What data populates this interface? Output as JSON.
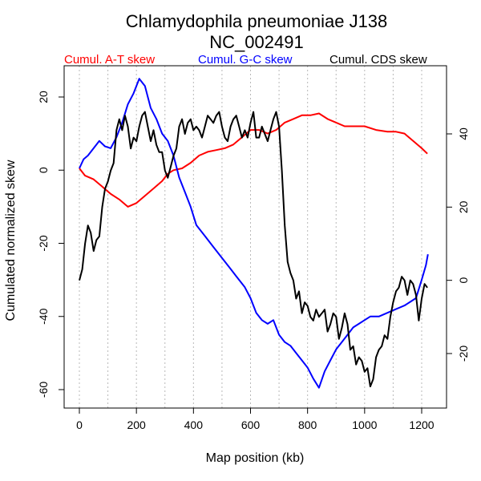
{
  "chart_data": {
    "type": "line",
    "title": "Chlamydophila pneumoniae J138",
    "subtitle": "NC_002491",
    "xlabel": "Map position (kb)",
    "ylabel": "Cumulated normalized skew",
    "xlim": [
      0,
      1230
    ],
    "x_ticks": [
      0,
      200,
      400,
      600,
      800,
      1000,
      1200
    ],
    "ylim_left": [
      -62,
      28
    ],
    "y_ticks_left": [
      20,
      0,
      -20,
      -40,
      -60
    ],
    "ylim_right": [
      -32,
      50
    ],
    "y_ticks_right": [
      40,
      20,
      0,
      -20
    ],
    "vertical_gridlines_at": [
      0,
      100,
      200,
      300,
      400,
      500,
      600,
      700,
      800,
      900,
      1000,
      1100,
      1200
    ],
    "legend_placement": "top",
    "series": [
      {
        "name": "Cumul. A-T skew",
        "color": "#ff0000",
        "axis": "left",
        "points": [
          [
            0,
            0.5
          ],
          [
            20,
            -1.5
          ],
          [
            50,
            -2.5
          ],
          [
            80,
            -4.5
          ],
          [
            110,
            -6.5
          ],
          [
            140,
            -8
          ],
          [
            170,
            -10
          ],
          [
            200,
            -9
          ],
          [
            230,
            -7
          ],
          [
            260,
            -5
          ],
          [
            290,
            -3
          ],
          [
            310,
            -1
          ],
          [
            330,
            0
          ],
          [
            360,
            0.5
          ],
          [
            390,
            2
          ],
          [
            420,
            4
          ],
          [
            450,
            5
          ],
          [
            480,
            5.5
          ],
          [
            510,
            6
          ],
          [
            540,
            7
          ],
          [
            570,
            9
          ],
          [
            600,
            11
          ],
          [
            630,
            11
          ],
          [
            660,
            10
          ],
          [
            690,
            11
          ],
          [
            720,
            13
          ],
          [
            750,
            14
          ],
          [
            780,
            15
          ],
          [
            810,
            15
          ],
          [
            840,
            15.5
          ],
          [
            870,
            14
          ],
          [
            900,
            13
          ],
          [
            930,
            12
          ],
          [
            960,
            12
          ],
          [
            1000,
            12
          ],
          [
            1040,
            11
          ],
          [
            1080,
            10.5
          ],
          [
            1110,
            10.5
          ],
          [
            1140,
            10
          ],
          [
            1170,
            8
          ],
          [
            1200,
            6
          ],
          [
            1220,
            4.5
          ]
        ]
      },
      {
        "name": "Cumul. G-C skew",
        "color": "#0000ff",
        "axis": "left",
        "points": [
          [
            0,
            0.5
          ],
          [
            15,
            3
          ],
          [
            30,
            4
          ],
          [
            50,
            6
          ],
          [
            70,
            8
          ],
          [
            90,
            6.5
          ],
          [
            110,
            6
          ],
          [
            130,
            9
          ],
          [
            150,
            13
          ],
          [
            170,
            18
          ],
          [
            190,
            21
          ],
          [
            210,
            25
          ],
          [
            230,
            23
          ],
          [
            250,
            17
          ],
          [
            270,
            14
          ],
          [
            290,
            10
          ],
          [
            310,
            8
          ],
          [
            330,
            4
          ],
          [
            350,
            -2
          ],
          [
            370,
            -6
          ],
          [
            390,
            -10
          ],
          [
            410,
            -15
          ],
          [
            440,
            -18
          ],
          [
            470,
            -21
          ],
          [
            500,
            -24
          ],
          [
            530,
            -27
          ],
          [
            550,
            -29
          ],
          [
            580,
            -32
          ],
          [
            600,
            -35
          ],
          [
            620,
            -39
          ],
          [
            640,
            -41
          ],
          [
            660,
            -42
          ],
          [
            680,
            -41
          ],
          [
            700,
            -45
          ],
          [
            720,
            -47
          ],
          [
            740,
            -48
          ],
          [
            760,
            -50
          ],
          [
            780,
            -52
          ],
          [
            800,
            -54
          ],
          [
            820,
            -57
          ],
          [
            840,
            -59.5
          ],
          [
            860,
            -55
          ],
          [
            880,
            -52
          ],
          [
            900,
            -49
          ],
          [
            920,
            -47
          ],
          [
            940,
            -45
          ],
          [
            960,
            -43
          ],
          [
            980,
            -42
          ],
          [
            1000,
            -41
          ],
          [
            1020,
            -40
          ],
          [
            1050,
            -40
          ],
          [
            1080,
            -39
          ],
          [
            1110,
            -38
          ],
          [
            1140,
            -37
          ],
          [
            1160,
            -36
          ],
          [
            1180,
            -35
          ],
          [
            1200,
            -30
          ],
          [
            1215,
            -26
          ],
          [
            1222,
            -23
          ]
        ]
      },
      {
        "name": "Cumul. CDS skew",
        "color": "#000000",
        "axis": "right",
        "points": [
          [
            0,
            0
          ],
          [
            10,
            3
          ],
          [
            20,
            10
          ],
          [
            30,
            15
          ],
          [
            40,
            13
          ],
          [
            50,
            8
          ],
          [
            60,
            11
          ],
          [
            70,
            12
          ],
          [
            80,
            20
          ],
          [
            90,
            25
          ],
          [
            100,
            27
          ],
          [
            110,
            30
          ],
          [
            120,
            32
          ],
          [
            130,
            41
          ],
          [
            140,
            44
          ],
          [
            150,
            41
          ],
          [
            160,
            45
          ],
          [
            170,
            42
          ],
          [
            180,
            36
          ],
          [
            190,
            39
          ],
          [
            200,
            38
          ],
          [
            210,
            42
          ],
          [
            220,
            45
          ],
          [
            230,
            46
          ],
          [
            240,
            42
          ],
          [
            250,
            38
          ],
          [
            260,
            41
          ],
          [
            270,
            37
          ],
          [
            280,
            35
          ],
          [
            290,
            35
          ],
          [
            300,
            30
          ],
          [
            310,
            28
          ],
          [
            320,
            31
          ],
          [
            330,
            34
          ],
          [
            340,
            36
          ],
          [
            350,
            42
          ],
          [
            360,
            44
          ],
          [
            370,
            40
          ],
          [
            380,
            43
          ],
          [
            390,
            44
          ],
          [
            400,
            41
          ],
          [
            410,
            42
          ],
          [
            420,
            41
          ],
          [
            430,
            39
          ],
          [
            440,
            42
          ],
          [
            450,
            45
          ],
          [
            460,
            44
          ],
          [
            470,
            43
          ],
          [
            480,
            45
          ],
          [
            490,
            46
          ],
          [
            500,
            42
          ],
          [
            510,
            39
          ],
          [
            520,
            38
          ],
          [
            530,
            42
          ],
          [
            540,
            44
          ],
          [
            550,
            45
          ],
          [
            560,
            42
          ],
          [
            570,
            39
          ],
          [
            580,
            41
          ],
          [
            590,
            39
          ],
          [
            600,
            43
          ],
          [
            610,
            46
          ],
          [
            620,
            39
          ],
          [
            630,
            39
          ],
          [
            640,
            42
          ],
          [
            650,
            40
          ],
          [
            660,
            38
          ],
          [
            670,
            41
          ],
          [
            680,
            44
          ],
          [
            690,
            46
          ],
          [
            700,
            42
          ],
          [
            710,
            30
          ],
          [
            720,
            15
          ],
          [
            730,
            5
          ],
          [
            740,
            2
          ],
          [
            750,
            0
          ],
          [
            760,
            -5
          ],
          [
            770,
            -3
          ],
          [
            780,
            -9
          ],
          [
            790,
            -6
          ],
          [
            800,
            -7
          ],
          [
            810,
            -10
          ],
          [
            820,
            -11
          ],
          [
            830,
            -8
          ],
          [
            840,
            -10
          ],
          [
            850,
            -9
          ],
          [
            860,
            -8
          ],
          [
            870,
            -14
          ],
          [
            880,
            -12
          ],
          [
            890,
            -9
          ],
          [
            900,
            -10
          ],
          [
            910,
            -16
          ],
          [
            920,
            -13
          ],
          [
            930,
            -9
          ],
          [
            940,
            -12
          ],
          [
            950,
            -19
          ],
          [
            960,
            -18
          ],
          [
            970,
            -23
          ],
          [
            980,
            -21
          ],
          [
            990,
            -22
          ],
          [
            1000,
            -25
          ],
          [
            1010,
            -24
          ],
          [
            1020,
            -29
          ],
          [
            1030,
            -27
          ],
          [
            1040,
            -21
          ],
          [
            1050,
            -19
          ],
          [
            1060,
            -18
          ],
          [
            1070,
            -15
          ],
          [
            1080,
            -16
          ],
          [
            1090,
            -10
          ],
          [
            1100,
            -6
          ],
          [
            1110,
            -3
          ],
          [
            1120,
            -2
          ],
          [
            1130,
            1
          ],
          [
            1140,
            0
          ],
          [
            1150,
            -4
          ],
          [
            1160,
            0
          ],
          [
            1170,
            -1
          ],
          [
            1180,
            -4
          ],
          [
            1190,
            -11
          ],
          [
            1200,
            -5
          ],
          [
            1210,
            -1
          ],
          [
            1220,
            -2
          ]
        ]
      }
    ]
  }
}
